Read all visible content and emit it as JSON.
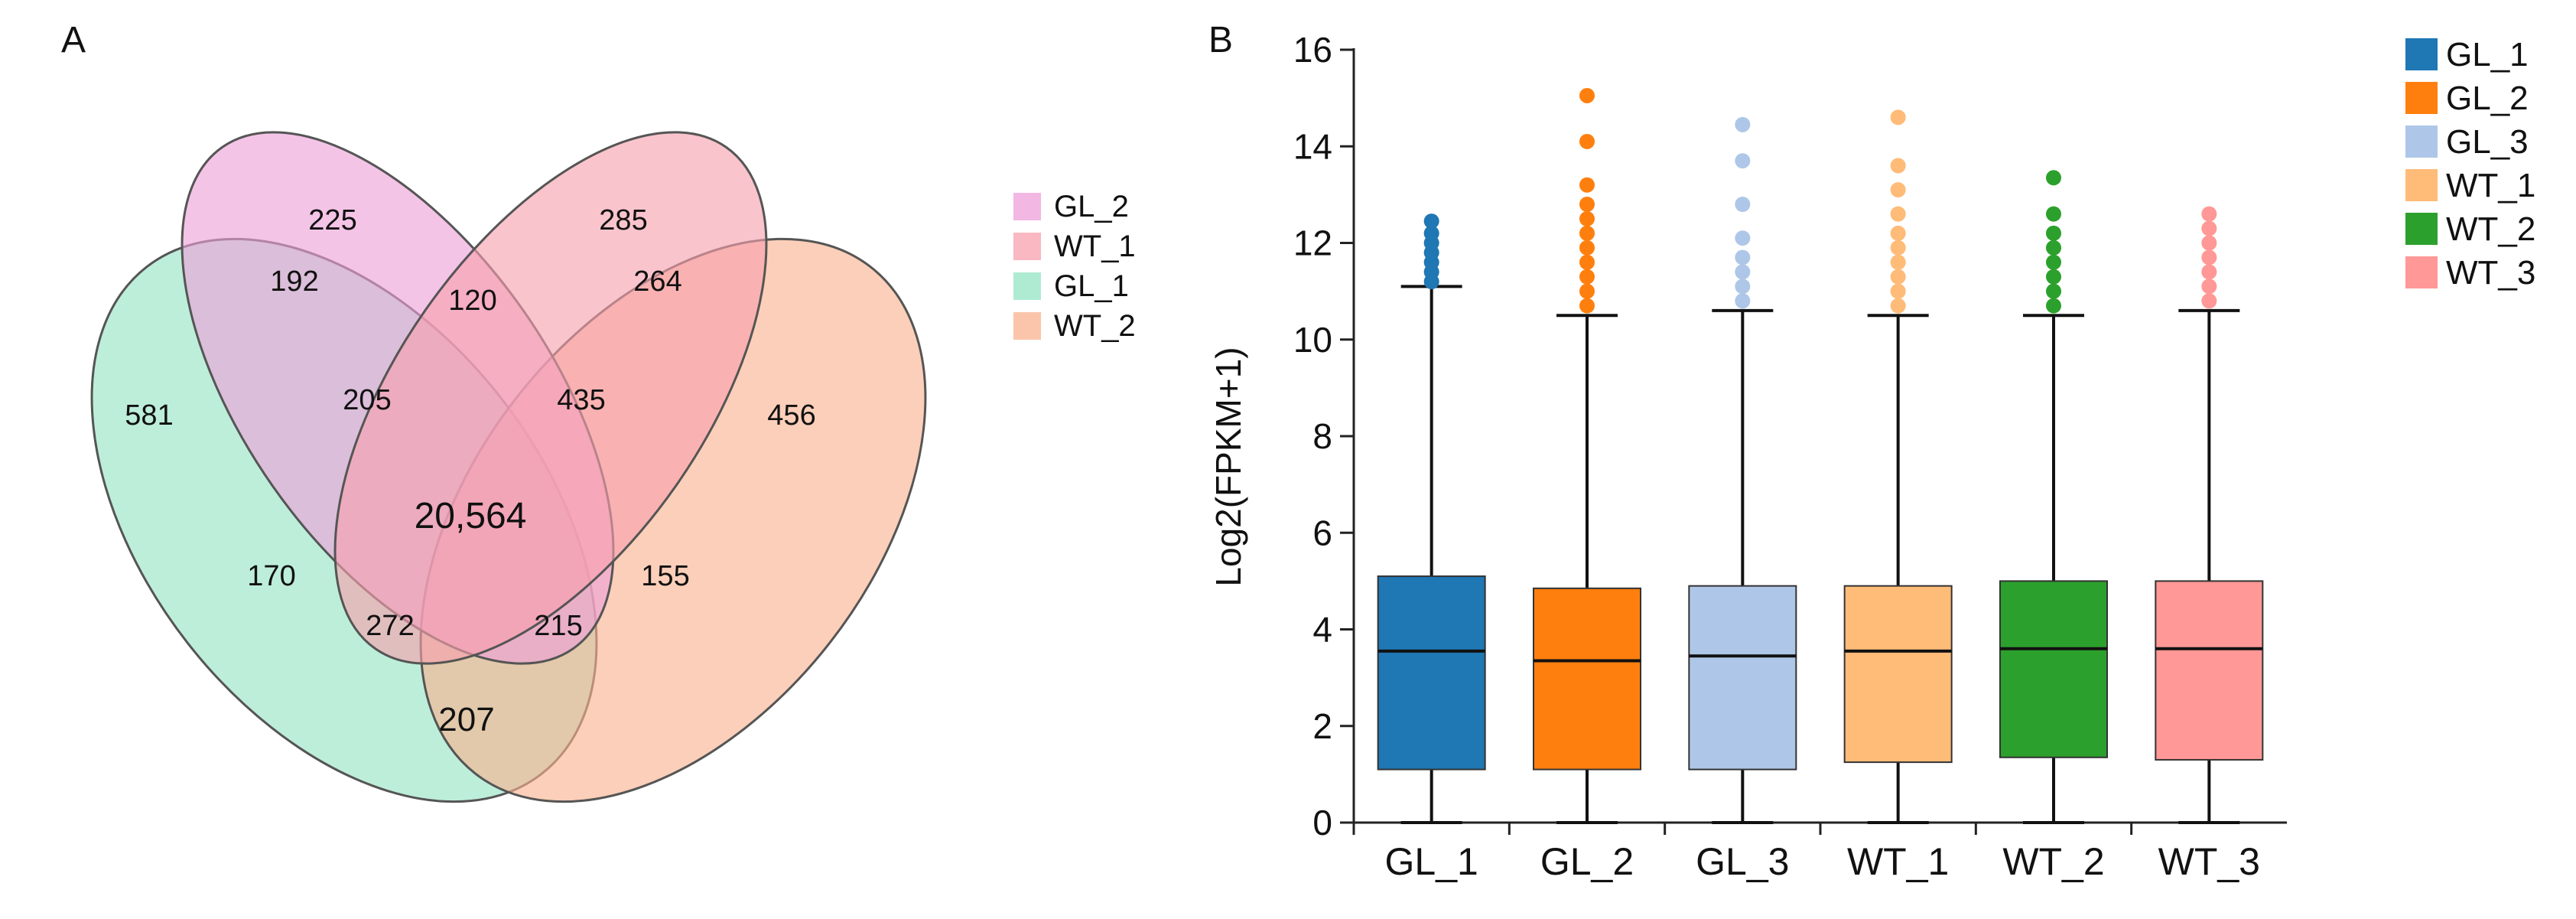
{
  "panels": {
    "a_label": "A",
    "b_label": "B"
  },
  "chart_data": [
    {
      "type": "venn",
      "panel": "A",
      "sets": [
        {
          "name": "GL_2",
          "color": "#ee9fd8"
        },
        {
          "name": "WT_1",
          "color": "#f7a0ad"
        },
        {
          "name": "GL_1",
          "color": "#94e4c4"
        },
        {
          "name": "WT_2",
          "color": "#f8b28e"
        }
      ],
      "legend": [
        "GL_2",
        "WT_1",
        "GL_1",
        "WT_2"
      ],
      "regions": [
        {
          "sets": [
            "GL_1"
          ],
          "value": "581"
        },
        {
          "sets": [
            "GL_2"
          ],
          "value": "225"
        },
        {
          "sets": [
            "WT_1"
          ],
          "value": "285"
        },
        {
          "sets": [
            "WT_2"
          ],
          "value": "456"
        },
        {
          "sets": [
            "GL_1",
            "GL_2"
          ],
          "value": "192"
        },
        {
          "sets": [
            "GL_2",
            "WT_1"
          ],
          "value": "120"
        },
        {
          "sets": [
            "WT_1",
            "WT_2"
          ],
          "value": "264"
        },
        {
          "sets": [
            "GL_1",
            "GL_2",
            "WT_1"
          ],
          "value": "205"
        },
        {
          "sets": [
            "GL_2",
            "WT_1",
            "WT_2"
          ],
          "value": "435"
        },
        {
          "sets": [
            "GL_1",
            "GL_2",
            "WT_1",
            "WT_2"
          ],
          "value": "20,564"
        },
        {
          "sets": [
            "GL_1",
            "WT_1"
          ],
          "value": "170"
        },
        {
          "sets": [
            "GL_2",
            "WT_2"
          ],
          "value": "155"
        },
        {
          "sets": [
            "GL_1",
            "WT_1",
            "WT_2"
          ],
          "value": "272"
        },
        {
          "sets": [
            "GL_1",
            "GL_2",
            "WT_2"
          ],
          "value": "215"
        },
        {
          "sets": [
            "GL_1",
            "WT_2"
          ],
          "value": "207"
        }
      ]
    },
    {
      "type": "boxplot",
      "panel": "B",
      "title": "",
      "xlabel": "",
      "ylabel": "Log2(FPKM+1)",
      "ylim": [
        0,
        16
      ],
      "yticks": [
        0,
        2,
        4,
        6,
        8,
        10,
        12,
        14,
        16
      ],
      "legend_position": "top-right",
      "series": [
        {
          "name": "GL_1",
          "color": "#1f77b4",
          "whisker_low": 0,
          "q1": 1.1,
          "median": 3.55,
          "q3": 5.1,
          "whisker_high": 11.1,
          "outliers": [
            11.2,
            11.4,
            11.6,
            11.8,
            12.0,
            12.2,
            12.45
          ]
        },
        {
          "name": "GL_2",
          "color": "#ff7f0e",
          "whisker_low": 0,
          "q1": 1.1,
          "median": 3.35,
          "q3": 4.85,
          "whisker_high": 10.5,
          "outliers": [
            10.7,
            11.0,
            11.3,
            11.6,
            11.9,
            12.2,
            12.5,
            12.8,
            13.2,
            14.1,
            15.05
          ]
        },
        {
          "name": "GL_3",
          "color": "#aec7e8",
          "whisker_low": 0,
          "q1": 1.1,
          "median": 3.45,
          "q3": 4.9,
          "whisker_high": 10.6,
          "outliers": [
            10.8,
            11.1,
            11.4,
            11.7,
            12.1,
            12.8,
            13.7,
            14.45
          ]
        },
        {
          "name": "WT_1",
          "color": "#ffbb78",
          "whisker_low": 0,
          "q1": 1.25,
          "median": 3.55,
          "q3": 4.9,
          "whisker_high": 10.5,
          "outliers": [
            10.7,
            11.0,
            11.3,
            11.6,
            11.9,
            12.2,
            12.6,
            13.1,
            13.6,
            14.6
          ]
        },
        {
          "name": "WT_2",
          "color": "#2ca02c",
          "whisker_low": 0,
          "q1": 1.35,
          "median": 3.6,
          "q3": 5.0,
          "whisker_high": 10.5,
          "outliers": [
            10.7,
            11.0,
            11.3,
            11.6,
            11.9,
            12.2,
            12.6,
            13.35
          ]
        },
        {
          "name": "WT_3",
          "color": "#ff9896",
          "whisker_low": 0,
          "q1": 1.3,
          "median": 3.6,
          "q3": 5.0,
          "whisker_high": 10.6,
          "outliers": [
            10.8,
            11.1,
            11.4,
            11.7,
            12.0,
            12.3,
            12.6
          ]
        }
      ]
    }
  ]
}
